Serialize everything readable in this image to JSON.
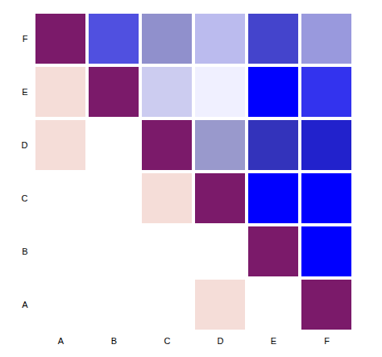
{
  "chart_data": {
    "type": "heatmap",
    "categories": [
      "A",
      "B",
      "C",
      "D",
      "E",
      "F"
    ],
    "cells": [
      {
        "row": "F",
        "col": "A",
        "color": "#7B1A6A"
      },
      {
        "row": "F",
        "col": "B",
        "color": "#5050E0"
      },
      {
        "row": "F",
        "col": "C",
        "color": "#9090CC"
      },
      {
        "row": "F",
        "col": "D",
        "color": "#BBBBEE"
      },
      {
        "row": "F",
        "col": "E",
        "color": "#4444CC"
      },
      {
        "row": "F",
        "col": "F",
        "color": "#9999DD"
      },
      {
        "row": "E",
        "col": "A",
        "color": "#F5DDD8"
      },
      {
        "row": "E",
        "col": "B",
        "color": "#7B1A6A"
      },
      {
        "row": "E",
        "col": "C",
        "color": "#CCCCF0"
      },
      {
        "row": "E",
        "col": "D",
        "color": "#F0F0FF"
      },
      {
        "row": "E",
        "col": "E",
        "color": "#0000FF"
      },
      {
        "row": "E",
        "col": "F",
        "color": "#3333EE"
      },
      {
        "row": "D",
        "col": "A",
        "color": "#F5DDD8"
      },
      {
        "row": "D",
        "col": "C",
        "color": "#7B1A6A"
      },
      {
        "row": "D",
        "col": "D",
        "color": "#9999CC"
      },
      {
        "row": "D",
        "col": "E",
        "color": "#3333BB"
      },
      {
        "row": "D",
        "col": "F",
        "color": "#2222CC"
      },
      {
        "row": "C",
        "col": "C",
        "color": "#F5DDD8"
      },
      {
        "row": "C",
        "col": "D",
        "color": "#7B1A6A"
      },
      {
        "row": "C",
        "col": "E",
        "color": "#0000FF"
      },
      {
        "row": "C",
        "col": "F",
        "color": "#0000FF"
      },
      {
        "row": "B",
        "col": "E",
        "color": "#7B1A6A"
      },
      {
        "row": "B",
        "col": "F",
        "color": "#0000FF"
      },
      {
        "row": "A",
        "col": "D",
        "color": "#F5DDD8"
      },
      {
        "row": "A",
        "col": "F",
        "color": "#7B1A6A"
      }
    ]
  }
}
